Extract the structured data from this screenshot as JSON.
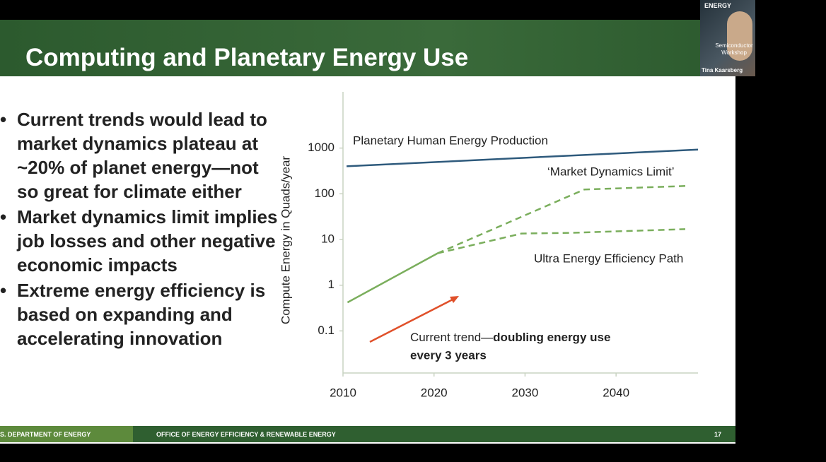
{
  "slide": {
    "title": "Computing and Planetary Energy Use",
    "bullets": [
      "Current trends would lead to market dynamics plateau at ~20% of planet energy—not so great for climate either",
      "Market dynamics limit implies job losses and other negative economic impacts",
      "Extreme energy efficiency is based on expanding and accelerating innovation"
    ],
    "footer_left": "S. DEPARTMENT OF ENERGY",
    "footer_center": "OFFICE OF ENERGY EFFICIENCY & RENEWABLE ENERGY",
    "page_number": "17"
  },
  "video_tile": {
    "logo": "ENERGY",
    "event": "Semiconductor Workshop",
    "speaker": "Tina Kaarsberg"
  },
  "chart_data": {
    "type": "line",
    "y_label": "Compute Energy in Quads/year",
    "log_y": true,
    "xlim": [
      2010,
      2049
    ],
    "xticks": [
      2010,
      2020,
      2030,
      2040
    ],
    "ylim": [
      0.012,
      17000
    ],
    "yticks": [
      0.1,
      1,
      10,
      100,
      1000
    ],
    "series": [
      {
        "name": "Planetary Human Energy Production",
        "color": "#2e5a7c",
        "dash": false,
        "x": [
          2010.4,
          2049
        ],
        "values": [
          400,
          930
        ]
      },
      {
        "color": "#7aae5c",
        "dash": false,
        "x": [
          2010.5,
          2020.4
        ],
        "values": [
          0.42,
          5
        ]
      },
      {
        "name": "‘Market Dynamics Limit’",
        "color": "#7aae5c",
        "dash": true,
        "x": [
          2020.4,
          2036.5,
          2039.6,
          2047.6
        ],
        "values": [
          5,
          124,
          130,
          148
        ]
      },
      {
        "name": "Ultra Energy Efficiency Path",
        "color": "#7aae5c",
        "dash": true,
        "x": [
          2020.4,
          2029.6,
          2035,
          2047.6
        ],
        "values": [
          5,
          13.5,
          14,
          16.8
        ]
      }
    ],
    "annotations": [
      "Current trend—",
      "doubling energy use",
      "every 3 years"
    ]
  }
}
